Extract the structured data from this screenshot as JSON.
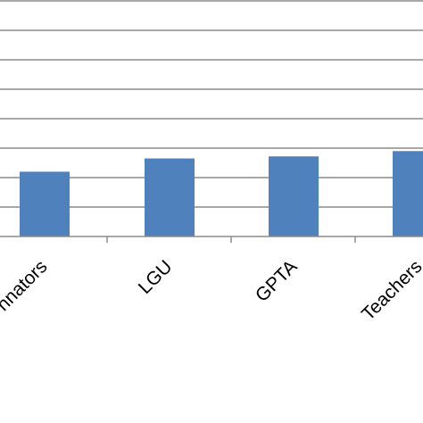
{
  "chart_data": {
    "type": "bar",
    "categories": [
      "nnators",
      "LGU",
      "GPTA",
      "Teachers"
    ],
    "values": [
      2.2,
      2.65,
      2.72,
      2.9
    ],
    "ylim": [
      0,
      8
    ],
    "grid": true,
    "legend": "none",
    "bar_color": "#4f81bd",
    "grid_color": "#8c8c8c"
  }
}
